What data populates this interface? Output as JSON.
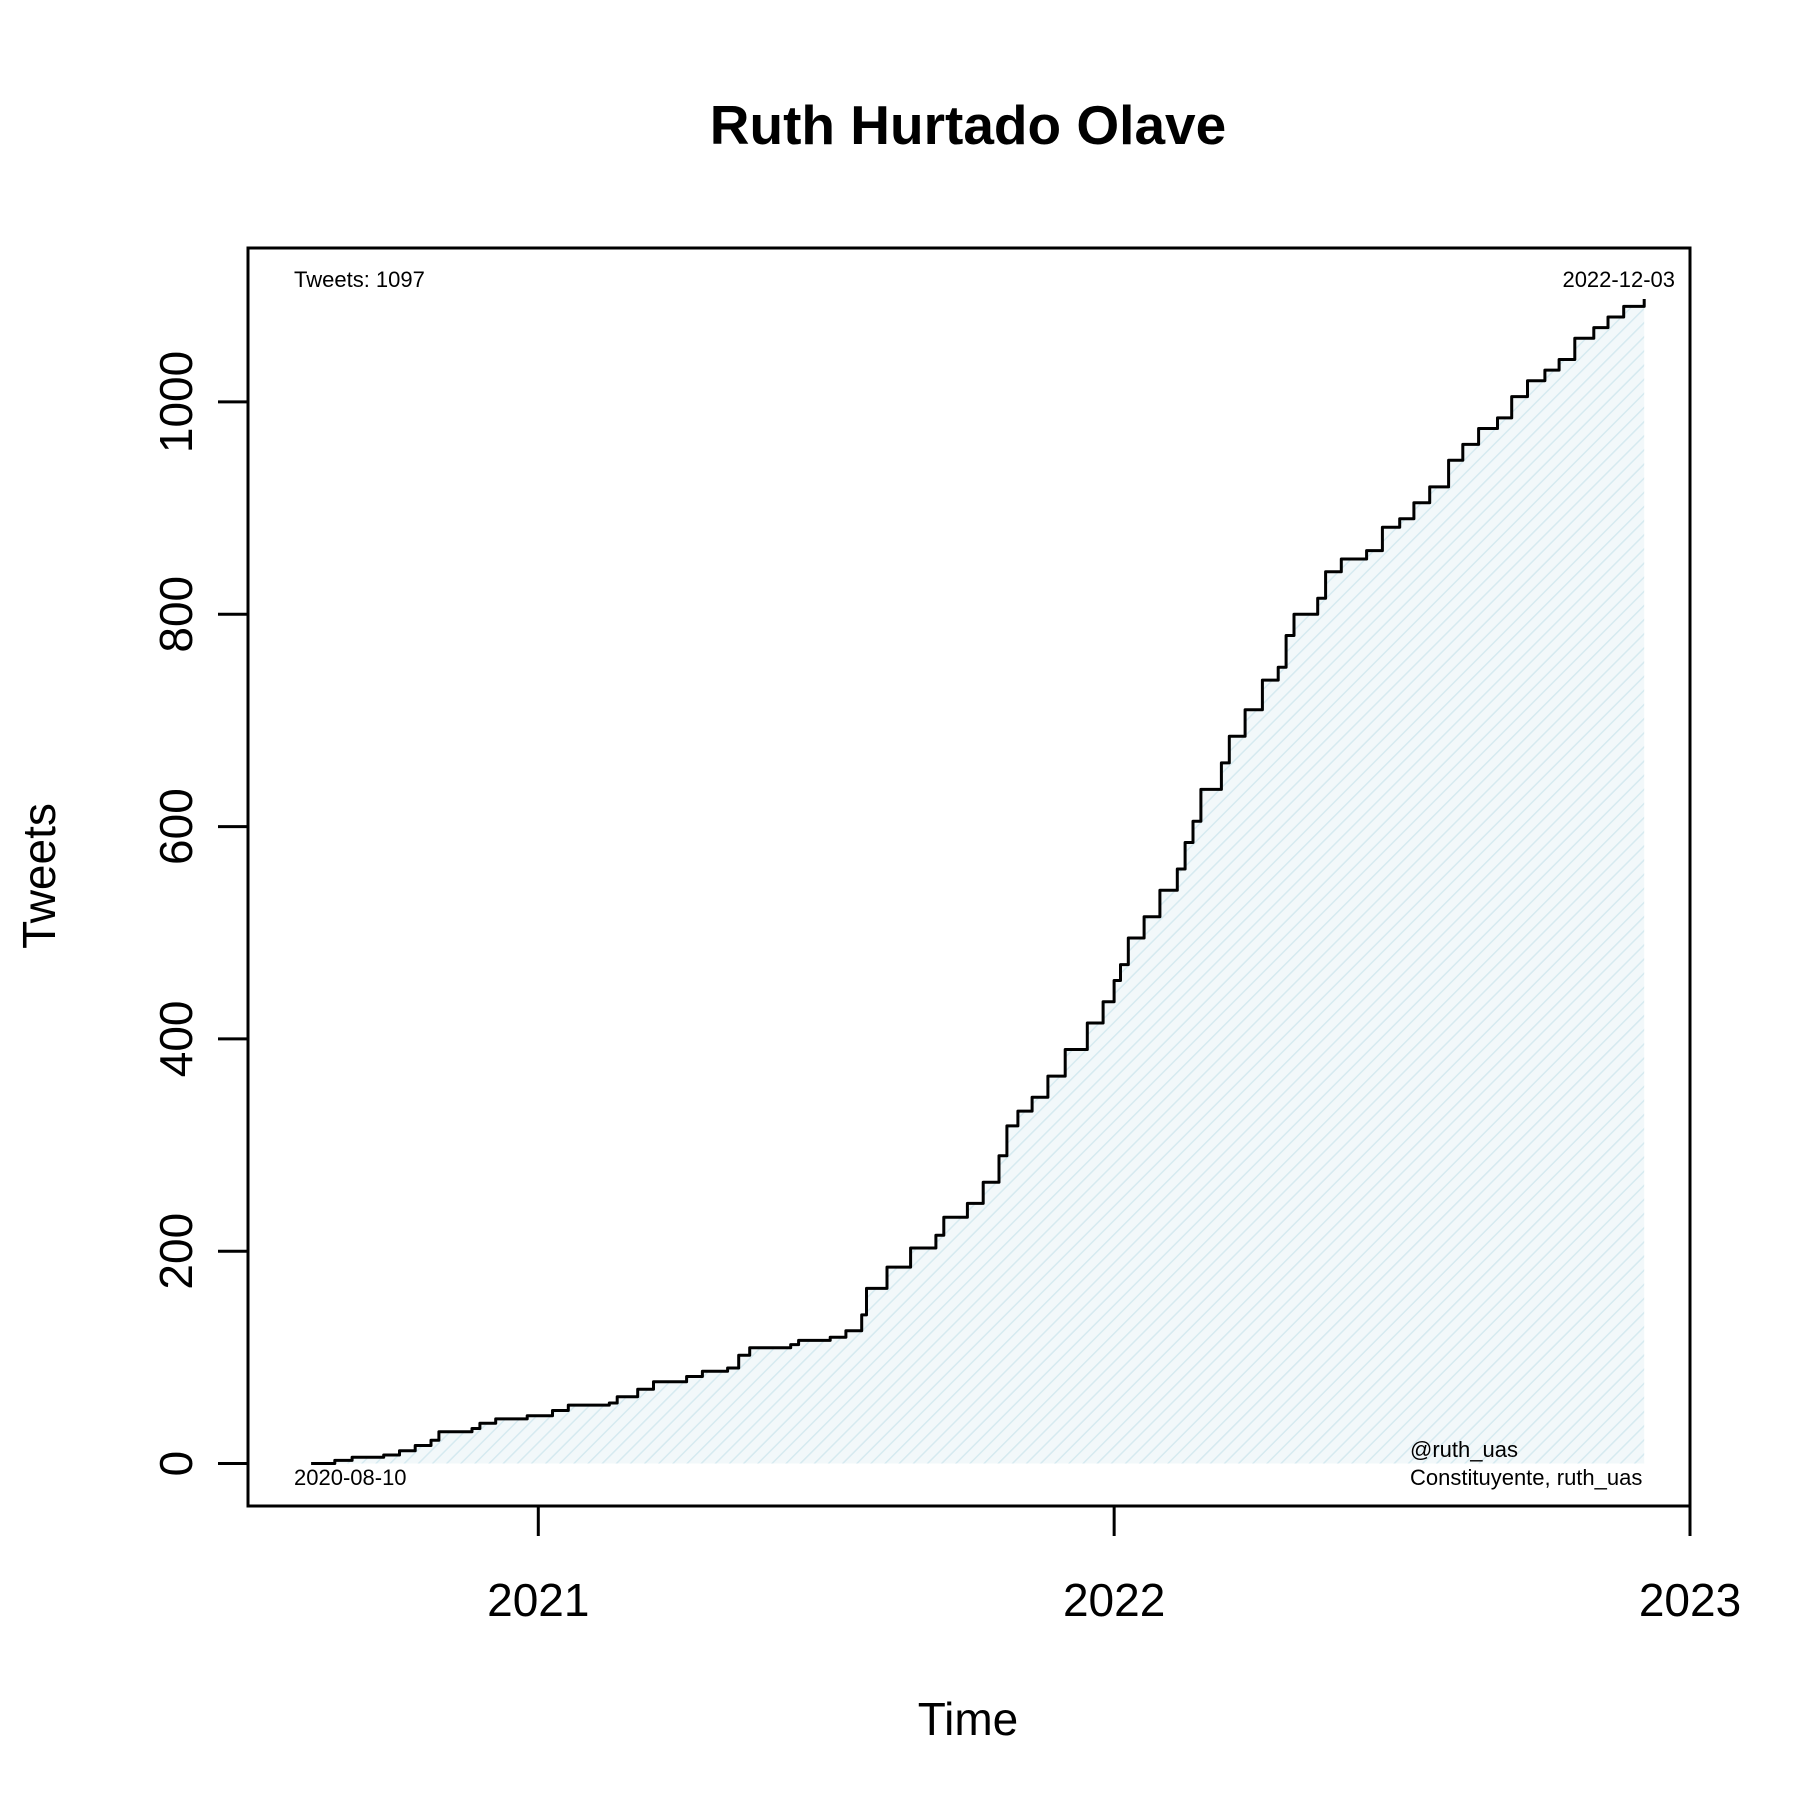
{
  "chart_data": {
    "type": "area",
    "title": "Ruth Hurtado Olave",
    "xlabel": "Time",
    "ylabel": "Tweets",
    "xlim": [
      "2020-07-01",
      "2023-01-01"
    ],
    "ylim": [
      -40,
      1145
    ],
    "x_ticks": [
      {
        "date": "2021-01-01",
        "label": "2021"
      },
      {
        "date": "2022-01-01",
        "label": "2022"
      },
      {
        "date": "2023-01-01",
        "label": "2023"
      }
    ],
    "y_ticks": [
      0,
      200,
      400,
      600,
      800,
      1000
    ],
    "grid": false,
    "fill_color": "#e4f1f5",
    "line_color": "#000000",
    "annotations": {
      "total": "Tweets: 1097",
      "end_date": "2022-12-03",
      "start_date": "2020-08-10",
      "handle": "@ruth_uas",
      "description": "Constituyente, ruth_uas"
    },
    "series": [
      {
        "points": [
          [
            "2020-08-10",
            0
          ],
          [
            "2020-08-25",
            3
          ],
          [
            "2020-09-05",
            6
          ],
          [
            "2020-09-25",
            8
          ],
          [
            "2020-10-05",
            12
          ],
          [
            "2020-10-15",
            17
          ],
          [
            "2020-10-25",
            22
          ],
          [
            "2020-10-30",
            30
          ],
          [
            "2020-11-20",
            33
          ],
          [
            "2020-11-25",
            38
          ],
          [
            "2020-12-05",
            42
          ],
          [
            "2020-12-25",
            45
          ],
          [
            "2021-01-10",
            50
          ],
          [
            "2021-01-20",
            55
          ],
          [
            "2021-02-15",
            57
          ],
          [
            "2021-02-20",
            63
          ],
          [
            "2021-03-05",
            70
          ],
          [
            "2021-03-15",
            77
          ],
          [
            "2021-04-05",
            82
          ],
          [
            "2021-04-15",
            87
          ],
          [
            "2021-05-01",
            90
          ],
          [
            "2021-05-08",
            102
          ],
          [
            "2021-05-15",
            109
          ],
          [
            "2021-06-10",
            112
          ],
          [
            "2021-06-15",
            116
          ],
          [
            "2021-07-05",
            119
          ],
          [
            "2021-07-15",
            125
          ],
          [
            "2021-07-25",
            140
          ],
          [
            "2021-07-28",
            165
          ],
          [
            "2021-08-10",
            185
          ],
          [
            "2021-08-25",
            203
          ],
          [
            "2021-09-10",
            215
          ],
          [
            "2021-09-15",
            232
          ],
          [
            "2021-09-30",
            245
          ],
          [
            "2021-10-10",
            265
          ],
          [
            "2021-10-20",
            290
          ],
          [
            "2021-10-25",
            318
          ],
          [
            "2021-11-01",
            332
          ],
          [
            "2021-11-10",
            345
          ],
          [
            "2021-11-20",
            365
          ],
          [
            "2021-12-01",
            390
          ],
          [
            "2021-12-15",
            415
          ],
          [
            "2021-12-25",
            435
          ],
          [
            "2022-01-01",
            455
          ],
          [
            "2022-01-05",
            470
          ],
          [
            "2022-01-10",
            495
          ],
          [
            "2022-01-20",
            515
          ],
          [
            "2022-01-30",
            540
          ],
          [
            "2022-02-10",
            560
          ],
          [
            "2022-02-15",
            585
          ],
          [
            "2022-02-20",
            605
          ],
          [
            "2022-02-25",
            635
          ],
          [
            "2022-03-10",
            660
          ],
          [
            "2022-03-15",
            685
          ],
          [
            "2022-03-25",
            710
          ],
          [
            "2022-04-05",
            738
          ],
          [
            "2022-04-15",
            750
          ],
          [
            "2022-04-20",
            780
          ],
          [
            "2022-04-25",
            800
          ],
          [
            "2022-05-10",
            815
          ],
          [
            "2022-05-15",
            840
          ],
          [
            "2022-05-25",
            852
          ],
          [
            "2022-06-10",
            860
          ],
          [
            "2022-06-20",
            882
          ],
          [
            "2022-07-01",
            890
          ],
          [
            "2022-07-10",
            905
          ],
          [
            "2022-07-20",
            920
          ],
          [
            "2022-08-01",
            945
          ],
          [
            "2022-08-10",
            960
          ],
          [
            "2022-08-20",
            975
          ],
          [
            "2022-09-01",
            985
          ],
          [
            "2022-09-10",
            1005
          ],
          [
            "2022-09-20",
            1020
          ],
          [
            "2022-10-01",
            1030
          ],
          [
            "2022-10-10",
            1040
          ],
          [
            "2022-10-20",
            1060
          ],
          [
            "2022-11-01",
            1070
          ],
          [
            "2022-11-10",
            1080
          ],
          [
            "2022-11-20",
            1090
          ],
          [
            "2022-12-03",
            1097
          ]
        ]
      }
    ]
  }
}
